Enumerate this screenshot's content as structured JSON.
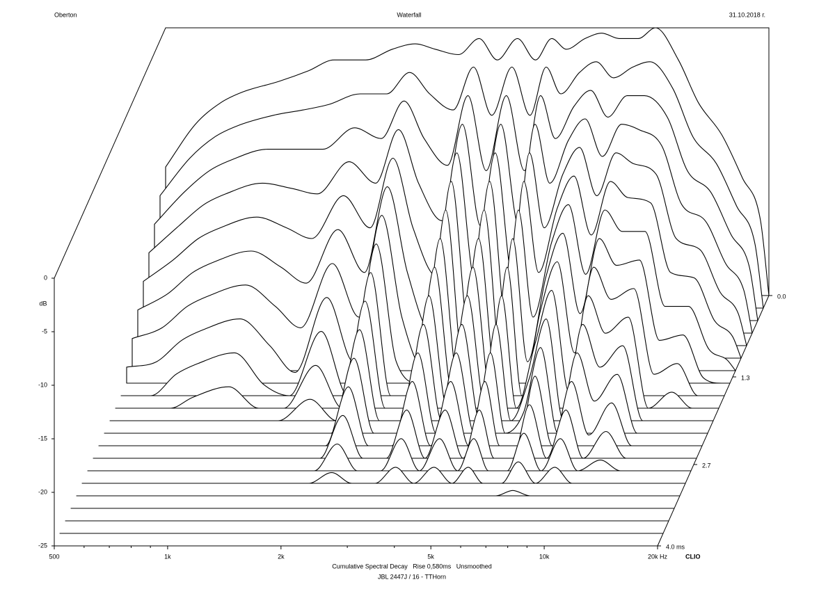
{
  "chart_data": {
    "type": "waterfall",
    "title": "Waterfall",
    "left_note": "Oberton",
    "date": "31.10.2018 г.",
    "subtitle": "Cumulative Spectral Decay   Rise 0,580ms   Unsmoothed",
    "caption": "JBL 2447J / 16 - TTHorn",
    "brand": "CLIO",
    "y_label": "dB",
    "color": "#000000",
    "fill": "#ffffff",
    "xscale": "log",
    "xlim": [
      500,
      20000
    ],
    "xticks": [
      500,
      {
        "value": 1000,
        "label": "1k"
      },
      {
        "value": 2000,
        "label": "2k"
      },
      {
        "value": 5000,
        "label": "5k"
      },
      {
        "value": 10000,
        "label": "10k"
      },
      {
        "value": 20000,
        "label": "20k Hz"
      }
    ],
    "xminor": [
      600,
      700,
      800,
      900,
      3000,
      4000,
      6000,
      7000,
      8000,
      9000
    ],
    "ylim": [
      -25,
      0
    ],
    "yticks": [
      0,
      -5,
      -10,
      -15,
      -20,
      -25
    ],
    "zlim": [
      0,
      4
    ],
    "zticks": [
      {
        "value": 0,
        "label": "0.0"
      },
      {
        "value": 1.3,
        "label": "1.3"
      },
      {
        "value": 2.7,
        "label": "2.7"
      },
      {
        "value": 4,
        "label": "4.0 ms"
      }
    ],
    "x": [
      500,
      600,
      700,
      800,
      1000,
      1200,
      1400,
      1700,
      2000,
      2300,
      2600,
      3000,
      3400,
      3800,
      4300,
      4800,
      5300,
      5800,
      6500,
      7200,
      8000,
      9000,
      10000,
      11500,
      13000,
      15000,
      17000,
      19000,
      20000
    ],
    "z": [
      0,
      0.2,
      0.4,
      0.6,
      0.8,
      1,
      1.2,
      1.4,
      1.6,
      1.8,
      2,
      2.2,
      2.4,
      2.6,
      2.8,
      3,
      3.2,
      3.4,
      3.6,
      3.8,
      4
    ],
    "values": [
      [
        -13,
        -9,
        -7,
        -6,
        -5,
        -4,
        -3,
        -3,
        -2,
        -1.5,
        -2,
        -2.5,
        -1,
        -3,
        -1,
        -3,
        -1,
        -2,
        -1,
        -0.5,
        -1,
        -1,
        0,
        -3,
        -7,
        -10,
        -14,
        -18,
        -25
      ],
      [
        -14.5,
        -11,
        -9,
        -8,
        -7,
        -6.5,
        -6,
        -5,
        -5,
        -3,
        -5,
        -6.5,
        -2.5,
        -7,
        -2.5,
        -7,
        -2.5,
        -5,
        -3,
        -2,
        -3.5,
        -2.5,
        -2,
        -4.5,
        -9,
        -11.5,
        -15.5,
        -19,
        -25
      ],
      [
        -16,
        -13,
        -11,
        -10,
        -9,
        -9,
        -9,
        -7,
        -8,
        -4.5,
        -8,
        -10.5,
        -4,
        -11,
        -4,
        -11,
        -4,
        -8,
        -5,
        -3.5,
        -6,
        -4,
        -4,
        -6,
        -11,
        -13,
        -17,
        -20,
        -25
      ],
      [
        -17.5,
        -15,
        -13,
        -12,
        -11,
        -11.5,
        -12,
        -9,
        -11,
        -6,
        -11,
        -14.5,
        -5.5,
        -15,
        -5.5,
        -15,
        -5.5,
        -11,
        -7,
        -5,
        -8.5,
        -5.5,
        -6,
        -7.5,
        -13,
        -14.5,
        -18.5,
        -21,
        -25
      ],
      [
        -19,
        -17,
        -15,
        -14,
        -13,
        -14,
        -15,
        -11,
        -14,
        -7.5,
        -14,
        -18.5,
        -7,
        -19,
        -7,
        -19,
        -7,
        -14,
        -9,
        -6.5,
        -11,
        -7,
        -8,
        -9,
        -15,
        -16,
        -20,
        -22,
        -25
      ],
      [
        -20.5,
        -19,
        -17,
        -16,
        -15,
        -16.5,
        -18,
        -13,
        -17,
        -9,
        -17,
        -22.5,
        -8.5,
        -23,
        -8.5,
        -23,
        -8.5,
        -17,
        -11,
        -8,
        -13.5,
        -8.5,
        -10,
        -10.5,
        -17,
        -17.5,
        -21.5,
        -23,
        -25
      ],
      [
        -22,
        -21,
        -19,
        -18,
        -17,
        -19,
        -21,
        -15,
        -20,
        -10.5,
        -20,
        -25,
        -10,
        -25,
        -10,
        -25,
        -10,
        -20,
        -13,
        -9.5,
        -16,
        -10,
        -12,
        -12,
        -19,
        -19,
        -23,
        -24,
        -25
      ],
      [
        -23.5,
        -23,
        -21,
        -20,
        -19,
        -21.5,
        -24,
        -17,
        -23,
        -12,
        -23,
        -25,
        -11.5,
        -25,
        -11.5,
        -25,
        -11.5,
        -23,
        -15,
        -11,
        -18.5,
        -11.5,
        -14,
        -13.5,
        -21,
        -20.5,
        -24.5,
        -25,
        -25
      ],
      [
        -25,
        -25,
        -23,
        -22,
        -21,
        -24,
        -25,
        -19,
        -25,
        -13.5,
        -25,
        -25,
        -13,
        -25,
        -13,
        -25,
        -13,
        -25,
        -17,
        -12.5,
        -21,
        -13,
        -16,
        -15,
        -23,
        -22,
        -25,
        -25,
        -25
      ],
      [
        -25,
        -25,
        -25,
        -24,
        -23,
        -25,
        -25,
        -21,
        -25,
        -15,
        -25,
        -25,
        -14.5,
        -25,
        -14.5,
        -25,
        -14.5,
        -25,
        -19,
        -14,
        -23.5,
        -14.5,
        -18,
        -16.5,
        -25,
        -23.5,
        -25,
        -25,
        -25
      ],
      [
        -25,
        -25,
        -25,
        -25,
        -25,
        -25,
        -25,
        -23,
        -25,
        -16.5,
        -25,
        -25,
        -16,
        -25,
        -16,
        -25,
        -16,
        -25,
        -21,
        -15.5,
        -25,
        -16,
        -20,
        -18,
        -25,
        -25,
        -25,
        -25,
        -25
      ],
      [
        -25,
        -25,
        -25,
        -25,
        -25,
        -25,
        -25,
        -25,
        -25,
        -18,
        -25,
        -25,
        -17.5,
        -25,
        -17.5,
        -25,
        -17.5,
        -25,
        -23,
        -17,
        -25,
        -17.5,
        -22,
        -19.5,
        -25,
        -25,
        -25,
        -25,
        -25
      ],
      [
        -25,
        -25,
        -25,
        -25,
        -25,
        -25,
        -25,
        -25,
        -25,
        -19.5,
        -25,
        -25,
        -19,
        -25,
        -19,
        -25,
        -19,
        -25,
        -25,
        -18.5,
        -25,
        -19,
        -24,
        -21,
        -25,
        -25,
        -25,
        -25,
        -25
      ],
      [
        -25,
        -25,
        -25,
        -25,
        -25,
        -25,
        -25,
        -25,
        -25,
        -21,
        -25,
        -25,
        -20.5,
        -25,
        -20.5,
        -25,
        -20.5,
        -25,
        -25,
        -20,
        -25,
        -20.5,
        -25,
        -22.5,
        -25,
        -25,
        -25,
        -25,
        -25
      ],
      [
        -25,
        -25,
        -25,
        -25,
        -25,
        -25,
        -25,
        -25,
        -25,
        -22.5,
        -25,
        -25,
        -22,
        -25,
        -22,
        -25,
        -22,
        -25,
        -25,
        -21.5,
        -25,
        -22,
        -25,
        -24,
        -25,
        -25,
        -25,
        -25,
        -25
      ],
      [
        -25,
        -25,
        -25,
        -25,
        -25,
        -25,
        -25,
        -25,
        -25,
        -24,
        -25,
        -25,
        -23.5,
        -25,
        -23.5,
        -25,
        -23.5,
        -25,
        -25,
        -23,
        -25,
        -23.5,
        -25,
        -25,
        -25,
        -25,
        -25,
        -25,
        -25
      ],
      [
        -25,
        -25,
        -25,
        -25,
        -25,
        -25,
        -25,
        -25,
        -25,
        -25,
        -25,
        -25,
        -25,
        -25,
        -25,
        -25,
        -25,
        -25,
        -25,
        -24.5,
        -25,
        -25,
        -25,
        -25,
        -25,
        -25,
        -25,
        -25,
        -25
      ],
      [
        -25,
        -25,
        -25,
        -25,
        -25,
        -25,
        -25,
        -25,
        -25,
        -25,
        -25,
        -25,
        -25,
        -25,
        -25,
        -25,
        -25,
        -25,
        -25,
        -25,
        -25,
        -25,
        -25,
        -25,
        -25,
        -25,
        -25,
        -25,
        -25
      ],
      [
        -25,
        -25,
        -25,
        -25,
        -25,
        -25,
        -25,
        -25,
        -25,
        -25,
        -25,
        -25,
        -25,
        -25,
        -25,
        -25,
        -25,
        -25,
        -25,
        -25,
        -25,
        -25,
        -25,
        -25,
        -25,
        -25,
        -25,
        -25,
        -25
      ],
      [
        -25,
        -25,
        -25,
        -25,
        -25,
        -25,
        -25,
        -25,
        -25,
        -25,
        -25,
        -25,
        -25,
        -25,
        -25,
        -25,
        -25,
        -25,
        -25,
        -25,
        -25,
        -25,
        -25,
        -25,
        -25,
        -25,
        -25,
        -25,
        -25
      ],
      [
        -25,
        -25,
        -25,
        -25,
        -25,
        -25,
        -25,
        -25,
        -25,
        -25,
        -25,
        -25,
        -25,
        -25,
        -25,
        -25,
        -25,
        -25,
        -25,
        -25,
        -25,
        -25,
        -25,
        -25,
        -25,
        -25,
        -25,
        -25,
        -25
      ]
    ]
  }
}
